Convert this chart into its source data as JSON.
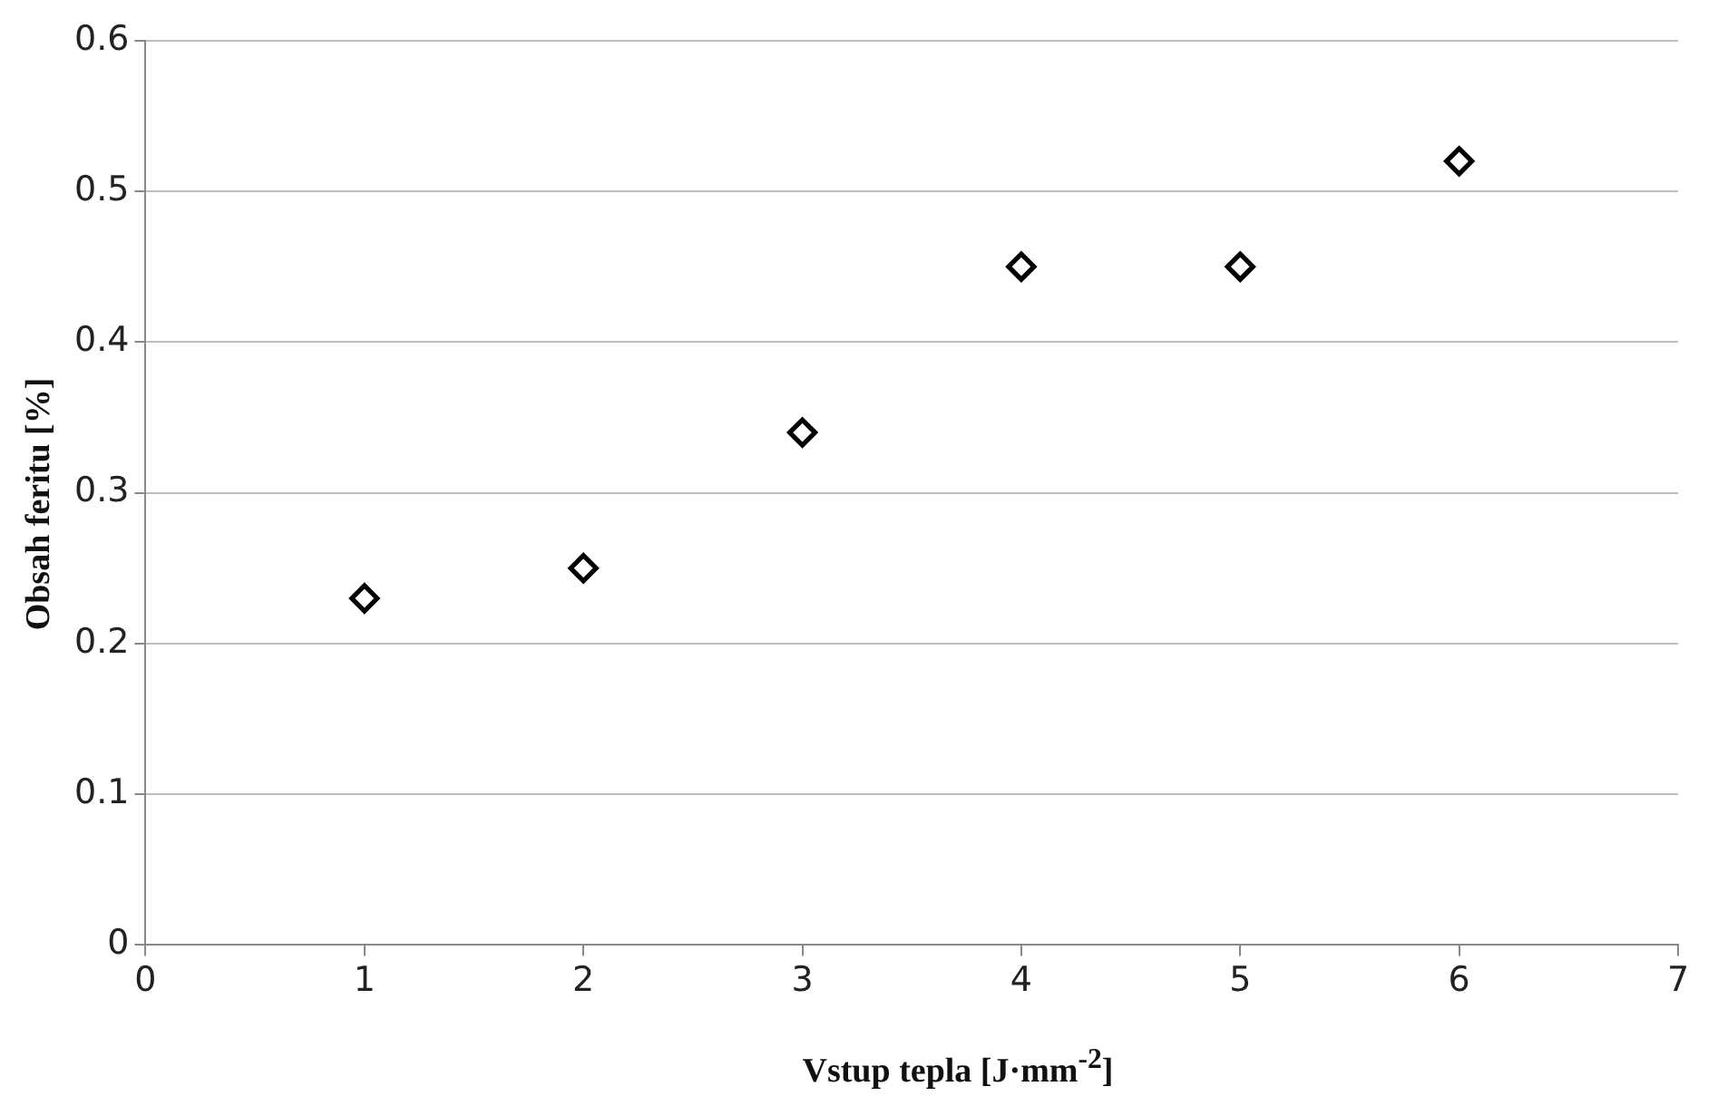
{
  "chart_data": {
    "type": "scatter",
    "xlabel": "Vstup tepla [J·mm$^{-2}$]",
    "ylabel": "Obsah feritu [%]",
    "x": [
      1,
      2,
      3,
      4,
      5,
      6
    ],
    "values": [
      0.23,
      0.25,
      0.34,
      0.45,
      0.45,
      0.52
    ],
    "color": "#000000",
    "xlim": [
      0,
      7
    ],
    "xticks": [
      0,
      1,
      2,
      3,
      4,
      5,
      6,
      7
    ],
    "ylim": [
      0,
      0.6
    ],
    "yticks": [
      0,
      0.1,
      0.2,
      0.3,
      0.4,
      0.5,
      0.6
    ],
    "grid": "y",
    "marker": "diamond"
  }
}
